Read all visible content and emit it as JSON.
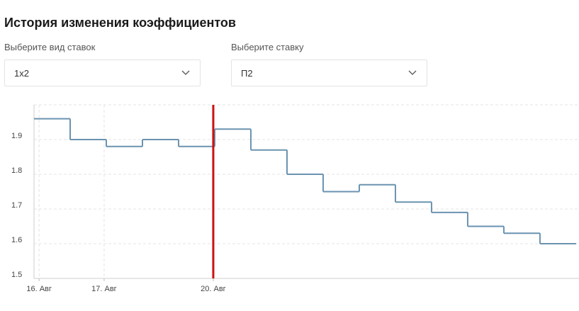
{
  "header": {
    "title": "История изменения коэффициентов"
  },
  "filters": [
    {
      "label": "Выберите вид ставок",
      "value": "1x2"
    },
    {
      "label": "Выберите ставку",
      "value": "П2"
    }
  ],
  "chart_data": {
    "type": "step",
    "x": [
      0,
      1,
      2,
      3,
      4,
      5,
      6,
      7,
      8,
      9,
      10,
      11,
      12,
      13,
      14
    ],
    "series": [
      {
        "color": "#6a93b0",
        "values": [
          1.96,
          1.9,
          1.88,
          1.9,
          1.88,
          1.93,
          1.87,
          1.8,
          1.75,
          1.77,
          1.72,
          1.69,
          1.65,
          1.63,
          1.6
        ]
      }
    ],
    "xlim": [
      0,
      15.08
    ],
    "xticks": [
      {
        "value": 0.14,
        "label": "16. Авг"
      },
      {
        "value": 1.94,
        "label": "17. Авг"
      },
      {
        "value": 4.96,
        "label": "20. Авг"
      }
    ],
    "ylim": [
      1.5,
      2.0
    ],
    "yticks": [
      1.5,
      1.6,
      1.7,
      1.8,
      1.9
    ],
    "vline": {
      "x": 4.96,
      "color": "#cc1111"
    },
    "grid": true
  }
}
